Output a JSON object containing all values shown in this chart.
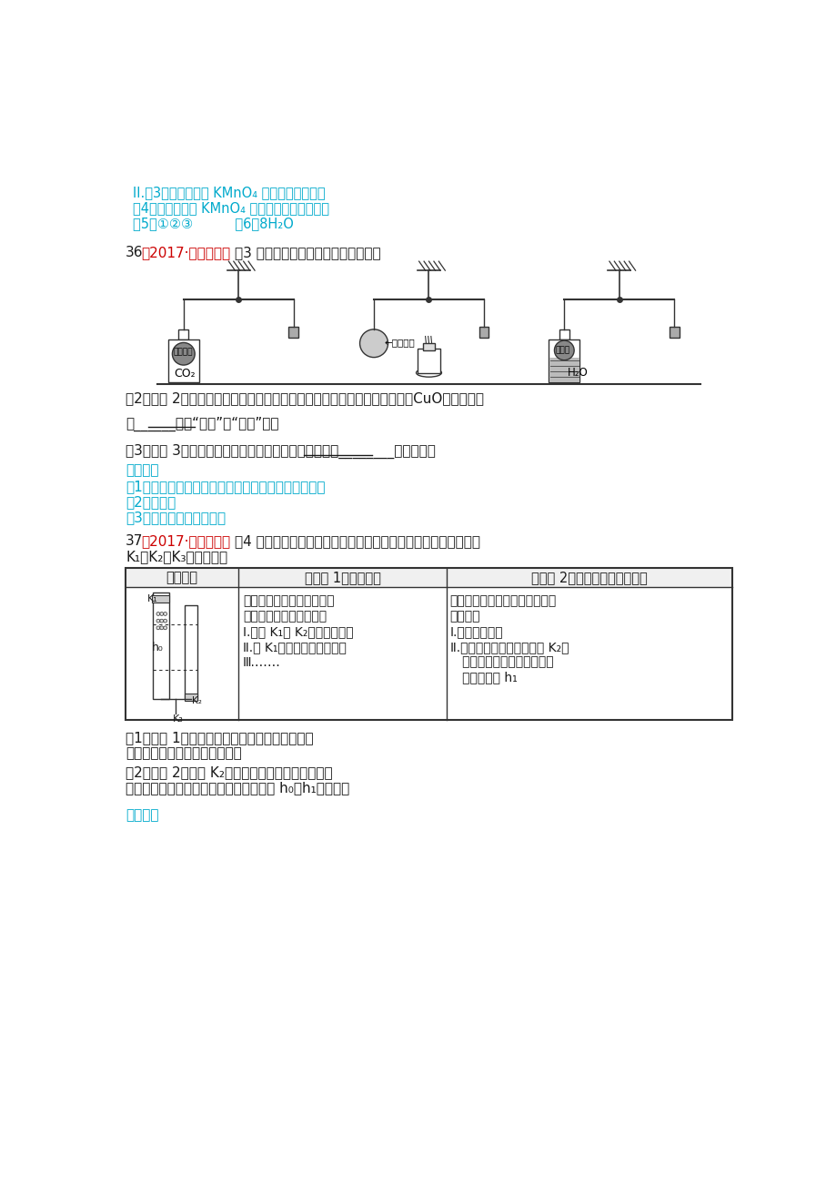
{
  "bg_color": "#ffffff",
  "text_color_black": "#1a1a1a",
  "text_color_cyan": "#00aacc",
  "text_color_red": "#cc0000",
  "s1_line1": "II.（3）样品浓度对 KMnO₄ 浓度腔蚀性的影响",
  "s1_line2": "（4）酸性条件下 KMnO₄ 浓度越高，腔蚀性越强",
  "s1_line3": "（5）①②③          （6）8H₂O",
  "q36_pre1": "36",
  "q36_pre2": "（2017·北京中考）",
  "q36_pre3": "（3 分）如下图所示，调节杠杠平衡。",
  "q36_q2": "（2）实验 2：加热细铜丝团一段时间后移走酒精灯，观察到铜丝变为黑色（CuO），细铜丝",
  "q36_q2b": "团______（填“上升”或“下沉”）。",
  "q36_q3": "（3）实验 3：一段时间后，铁粉包下沉，是因为铁粉与________发生反应。",
  "ans36_title": "【答案】",
  "ans36_1": "（1）活性炭具有吸附性，吸附二氧化碳，质量增加；",
  "ans36_2": "（2）下沉；",
  "ans36_3": "（3）水和氧气同时接触。",
  "q37_pre1": "37",
  "q37_pre2": "（2017·北京中考）",
  "q37_pre3": "（4 分）利用下图装置进行实验（两支玻璃管内径相同）。实验前",
  "q37_pre4": "K₁、K₂、K₃均已关闭。",
  "th1": "实验装置",
  "th2": "【实验 1】制备气体",
  "th3": "【实验 2】测定空气中氧气含量",
  "col2_lines": [
    "左管中带孔的燃烧匙盛有足",
    "量锡粒，右管盛有稀硫酸",
    "Ⅰ.打开 K₁和 K₂，使反应发生",
    "Ⅱ.在 K₁的导管口处收集气体",
    "Ⅲ.……"
  ],
  "col3_lines": [
    "左管中燃烧匙盛有足量白磷，右",
    "管盛有水",
    "Ⅰ.光照引燃白磷",
    "Ⅱ.待白磷息灯，冷却，打开 K₂，",
    "   至液面不再变化，右管中液",
    "   体的高度为 h₁"
  ],
  "q37_q1a": "（1）实验 1：锡与稀硫酸反应的化学方程式为；",
  "q37_q1b": "为使反应停止，田中的操作是。",
  "q37_q2a": "（2）实验 2：打开 K₂，右管中液面下降，原因是；",
  "q37_q2b": "计算空气中氧气体积分数的表达式为（用 h₀、h₁表示）。",
  "ans37_title": "【答案】"
}
